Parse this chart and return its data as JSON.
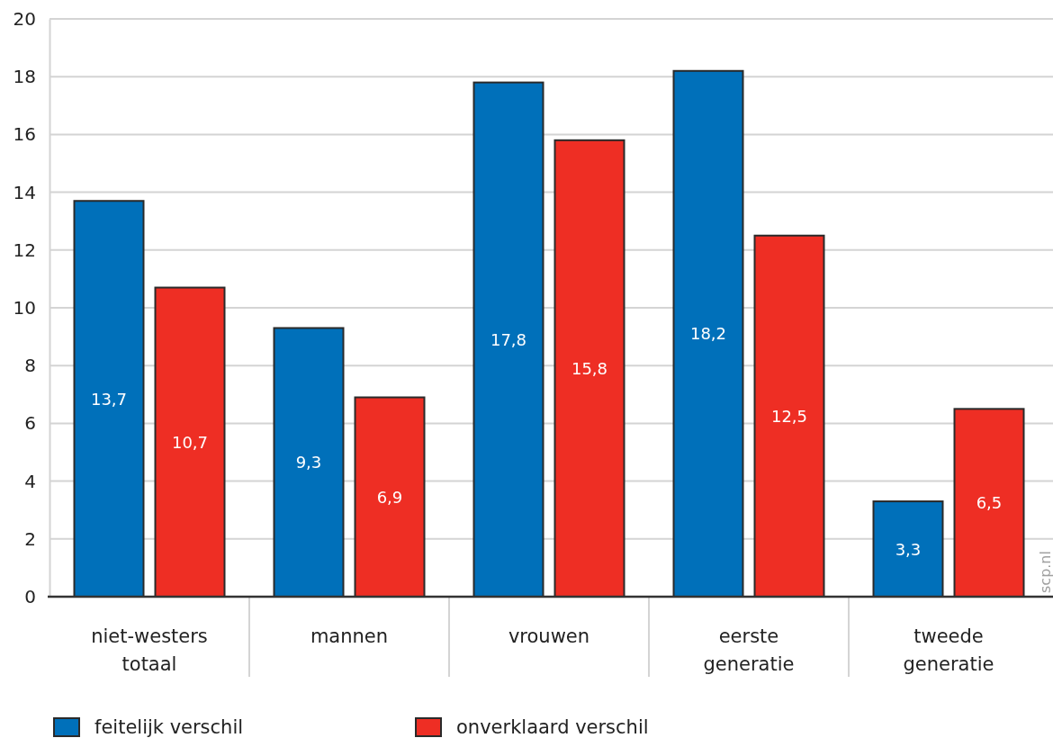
{
  "chart_data": {
    "type": "bar",
    "categories": [
      "niet-westers totaal",
      "mannen",
      "vrouwen",
      "eerste generatie",
      "tweede generatie"
    ],
    "series": [
      {
        "name": "feitelijk verschil",
        "color": "#0070ba",
        "values": [
          13.7,
          9.3,
          17.8,
          18.2,
          3.3
        ],
        "value_labels": [
          "13,7",
          "9,3",
          "17,8",
          "18,2",
          "3,3"
        ]
      },
      {
        "name": "onverklaard verschil",
        "color": "#ee2e24",
        "values": [
          10.7,
          6.9,
          15.8,
          12.5,
          6.5
        ],
        "value_labels": [
          "10,7",
          "6,9",
          "15,8",
          "12,5",
          "6,5"
        ]
      }
    ],
    "ylim": [
      0,
      20
    ],
    "yticks": [
      0,
      2,
      4,
      6,
      8,
      10,
      12,
      14,
      16,
      18,
      20
    ],
    "grid": "y",
    "legend": "bottom",
    "annotations": [
      "scp.nl"
    ]
  }
}
